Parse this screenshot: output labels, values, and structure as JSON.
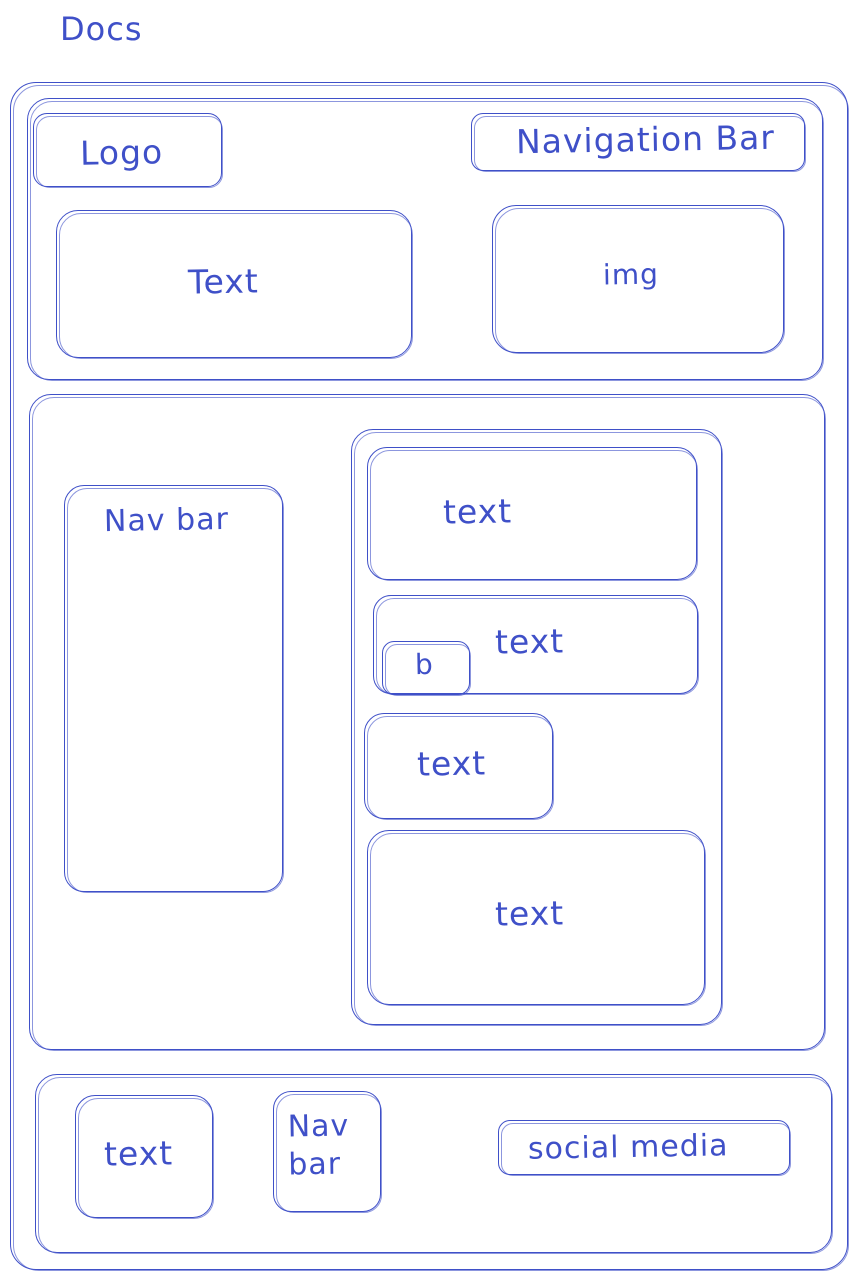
{
  "colors": {
    "ink": "#3f50c8"
  },
  "title": "Docs",
  "header": {
    "logo": "Logo",
    "navigation": "Navigation Bar",
    "hero_text": "Text",
    "hero_img": "img"
  },
  "main": {
    "sidebar": "Nav bar",
    "content": {
      "block1": "text",
      "block2": "text",
      "block2_badge": "b",
      "block3": "text",
      "block4": "text"
    }
  },
  "footer": {
    "text": "text",
    "nav": "Nav\nbar",
    "social": "social media"
  }
}
